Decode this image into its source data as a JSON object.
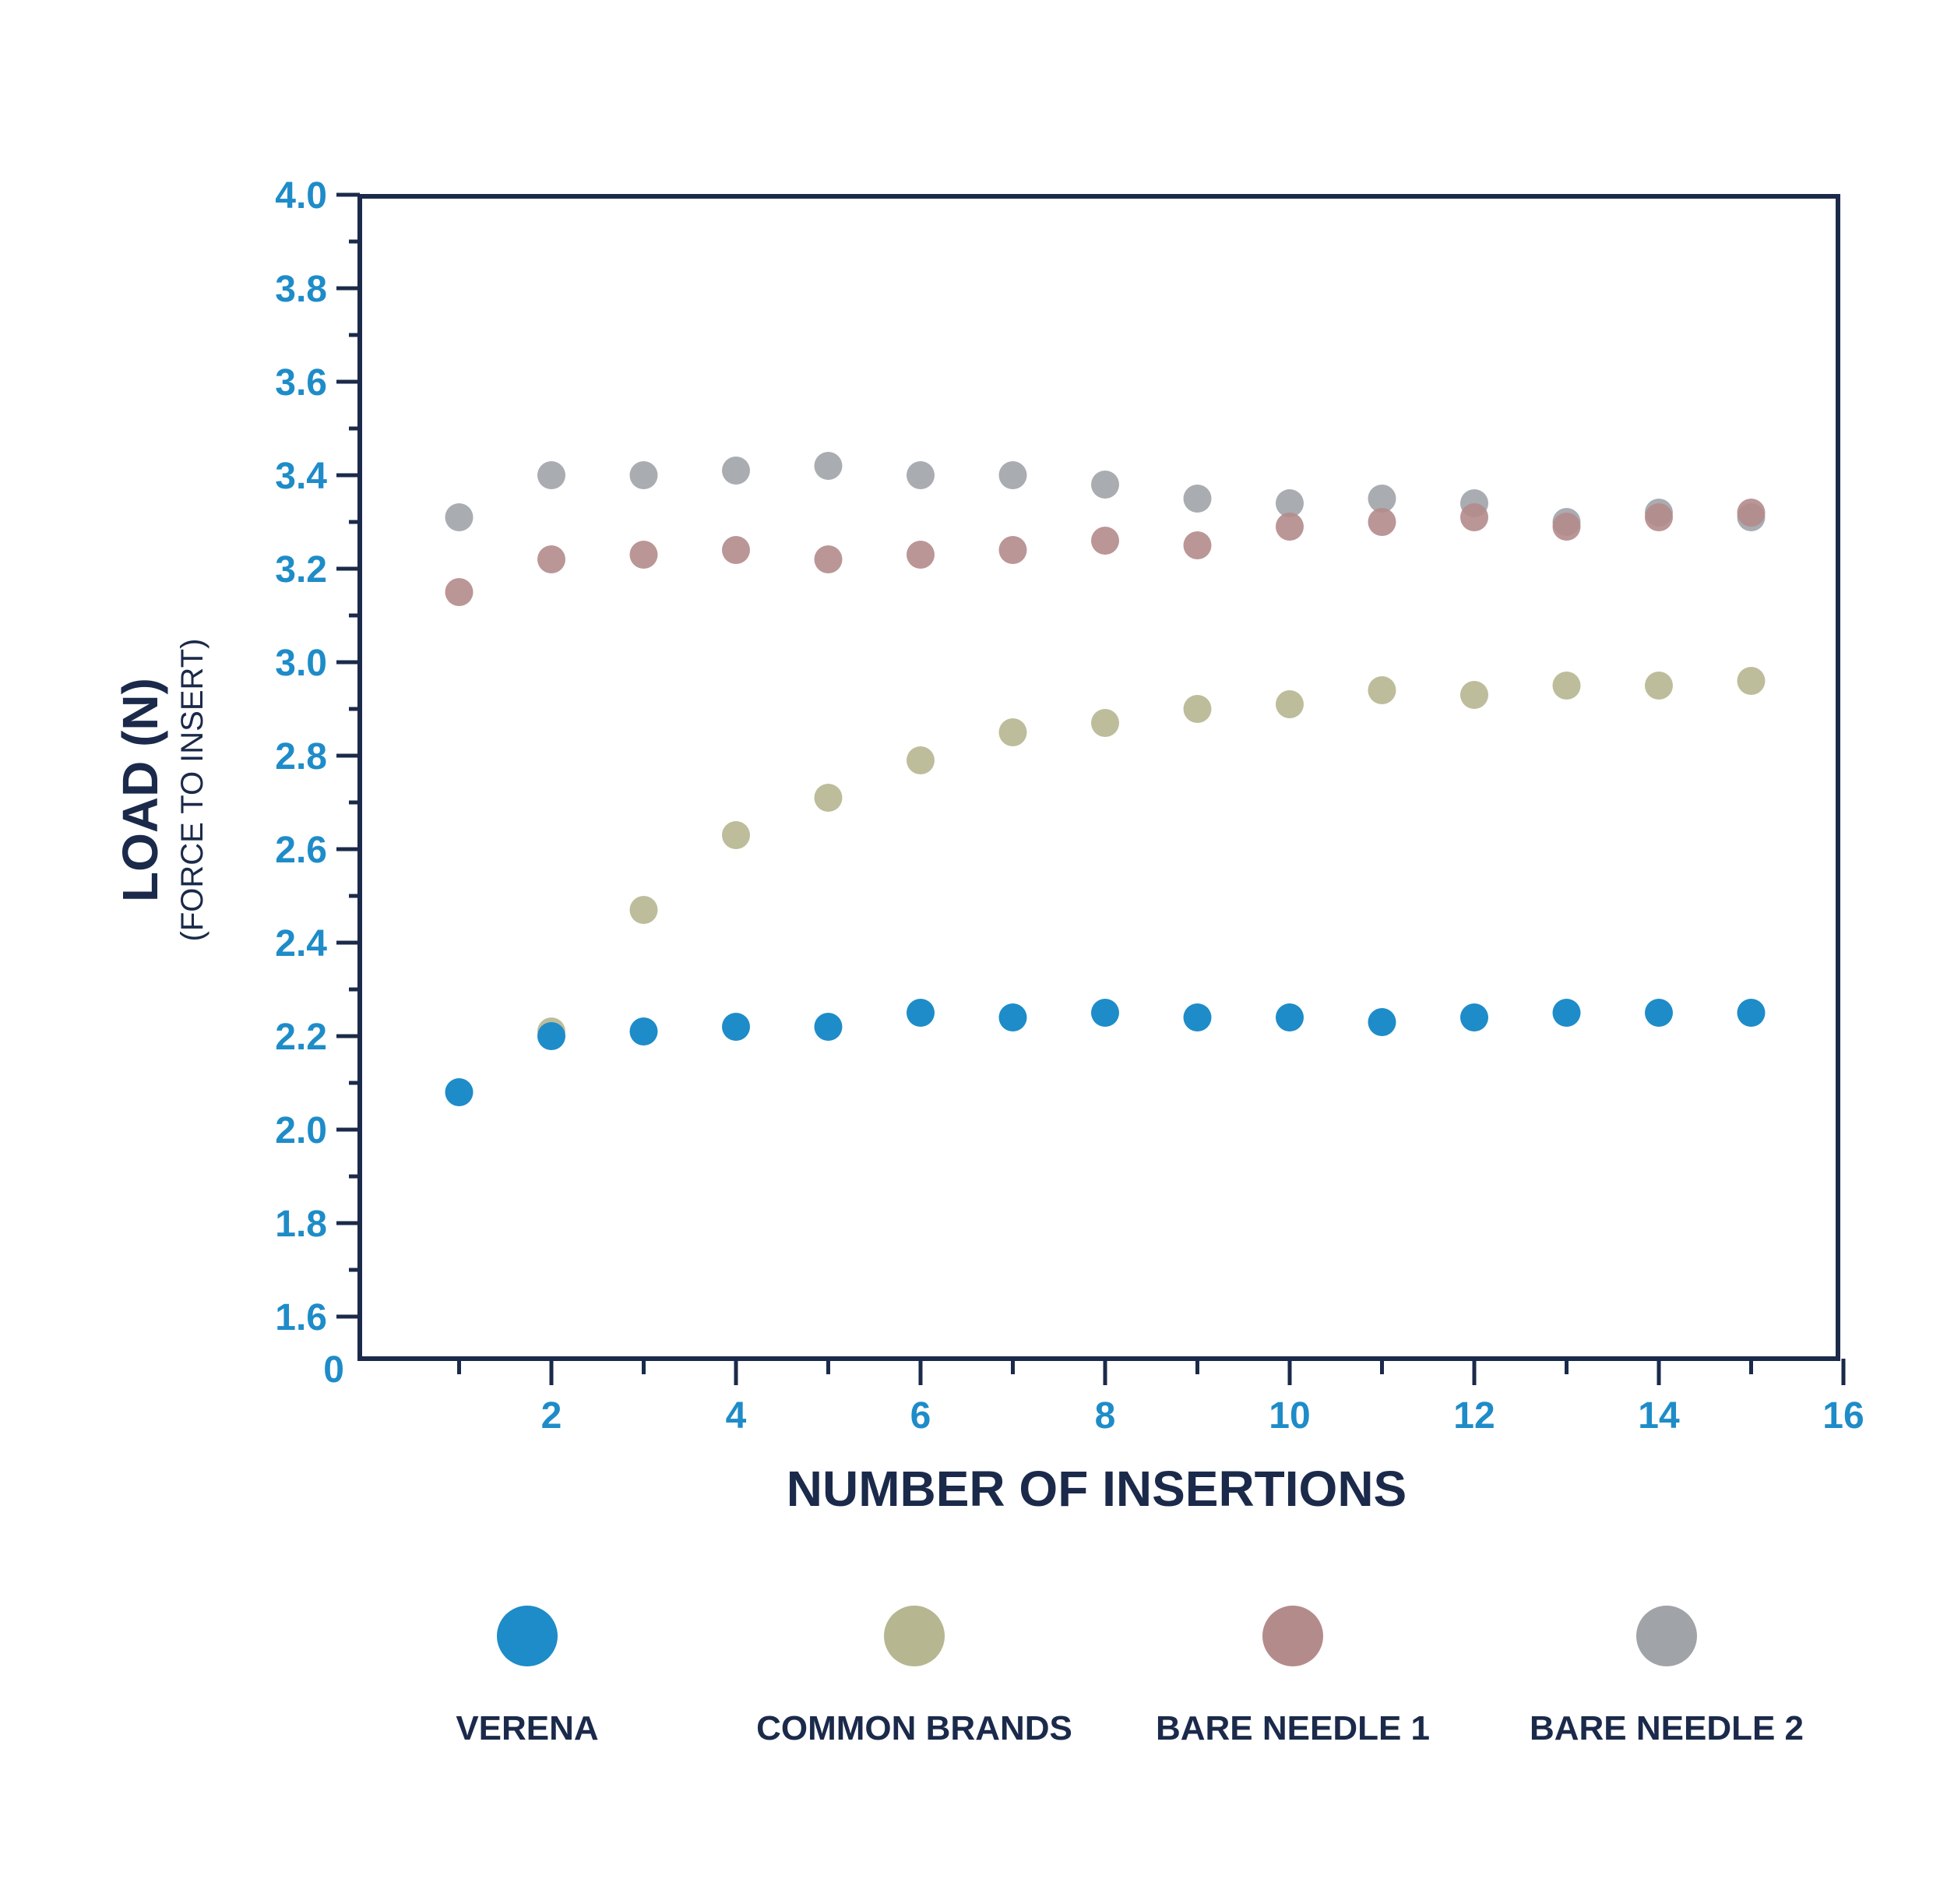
{
  "chart_data": {
    "type": "scatter",
    "xlabel": "NUMBER OF INSERTIONS",
    "ylabel": "LOAD (N)",
    "ylabel_sub": "(FORCE TO INSERT)",
    "xlim": [
      0,
      16
    ],
    "ylim": [
      1.5,
      4.0
    ],
    "y_axis_break": true,
    "y_zero_label": "0",
    "grid": false,
    "legend_position": "bottom",
    "x_ticks": [
      2,
      4,
      6,
      8,
      10,
      12,
      14,
      16
    ],
    "x_tick_labels": [
      "2",
      "4",
      "6",
      "8",
      "10",
      "12",
      "14",
      "16"
    ],
    "y_ticks": [
      1.6,
      1.8,
      2.0,
      2.2,
      2.4,
      2.6,
      2.8,
      3.0,
      3.2,
      3.4,
      3.6,
      3.8,
      4.0
    ],
    "y_tick_labels": [
      "1.6",
      "1.8",
      "2.0",
      "2.2",
      "2.4",
      "2.6",
      "2.8",
      "3.0",
      "3.2",
      "3.4",
      "3.6",
      "3.8",
      "4.0"
    ],
    "x": [
      1,
      2,
      3,
      4,
      5,
      6,
      7,
      8,
      9,
      10,
      11,
      12,
      13,
      14,
      15
    ],
    "series": [
      {
        "name": "BARE NEEDLE 2",
        "color": "#A0A3A8",
        "values": [
          3.31,
          3.4,
          3.4,
          3.41,
          3.42,
          3.4,
          3.4,
          3.38,
          3.35,
          3.34,
          3.35,
          3.34,
          3.3,
          3.32,
          3.31
        ]
      },
      {
        "name": "BARE NEEDLE 1",
        "color": "#B48B8B",
        "values": [
          3.15,
          3.22,
          3.23,
          3.24,
          3.22,
          3.23,
          3.24,
          3.26,
          3.25,
          3.29,
          3.3,
          3.31,
          3.29,
          3.31,
          3.32
        ]
      },
      {
        "name": "COMMON BRANDS",
        "color": "#B6B691",
        "values": [
          null,
          2.21,
          2.47,
          2.63,
          2.71,
          2.79,
          2.85,
          2.87,
          2.9,
          2.91,
          2.94,
          2.93,
          2.95,
          2.95,
          2.96
        ]
      },
      {
        "name": "VERENA",
        "color": "#1E8CC8",
        "values": [
          2.08,
          2.2,
          2.21,
          2.22,
          2.22,
          2.25,
          2.24,
          2.25,
          2.24,
          2.24,
          2.23,
          2.24,
          2.25,
          2.25,
          2.25
        ]
      }
    ],
    "legend": [
      {
        "label": "VERENA",
        "color": "#1E8CC8"
      },
      {
        "label": "COMMON BRANDS",
        "color": "#B6B691"
      },
      {
        "label": "BARE NEEDLE 1",
        "color": "#B48B8B"
      },
      {
        "label": "BARE NEEDLE 2",
        "color": "#A0A3A8"
      }
    ],
    "colors": {
      "axis": "#1B2A4A",
      "tick_label": "#1E8CC8",
      "title_text": "#1B2A4A"
    }
  }
}
